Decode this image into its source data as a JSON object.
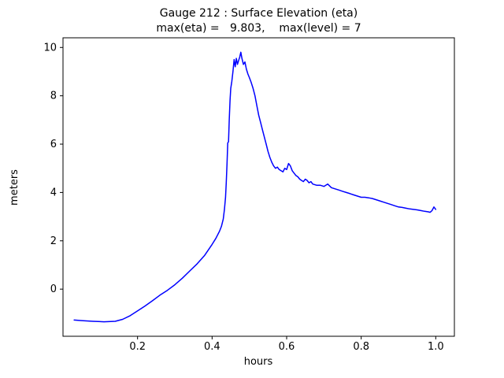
{
  "chart_data": {
    "type": "line",
    "title": "Gauge 212 : Surface Elevation (eta)",
    "subtitle": "max(eta) =   9.803,    max(level) = 7",
    "xlabel": "hours",
    "ylabel": "meters",
    "xlim": [
      0.0,
      1.05
    ],
    "ylim": [
      -1.95,
      10.4
    ],
    "grid": false,
    "legend": "none",
    "line_color": "#0000ff",
    "axis_color": "#000000",
    "max_eta": 9.803,
    "max_level": 7,
    "xticks": [
      {
        "v": 0.2,
        "label": "0.2"
      },
      {
        "v": 0.4,
        "label": "0.4"
      },
      {
        "v": 0.6,
        "label": "0.6"
      },
      {
        "v": 0.8,
        "label": "0.8"
      },
      {
        "v": 1.0,
        "label": "1.0"
      }
    ],
    "yticks": [
      {
        "v": 0,
        "label": "0"
      },
      {
        "v": 2,
        "label": "2"
      },
      {
        "v": 4,
        "label": "4"
      },
      {
        "v": 6,
        "label": "6"
      },
      {
        "v": 8,
        "label": "8"
      },
      {
        "v": 10,
        "label": "10"
      }
    ],
    "series": [
      {
        "name": "eta",
        "x": [
          0.03,
          0.05,
          0.08,
          0.11,
          0.14,
          0.16,
          0.18,
          0.2,
          0.22,
          0.24,
          0.26,
          0.28,
          0.3,
          0.32,
          0.34,
          0.36,
          0.38,
          0.4,
          0.41,
          0.42,
          0.425,
          0.43,
          0.433,
          0.436,
          0.438,
          0.44,
          0.442,
          0.444,
          0.446,
          0.448,
          0.45,
          0.453,
          0.456,
          0.459,
          0.462,
          0.465,
          0.468,
          0.471,
          0.474,
          0.477,
          0.48,
          0.484,
          0.488,
          0.492,
          0.496,
          0.5,
          0.505,
          0.51,
          0.515,
          0.52,
          0.525,
          0.53,
          0.535,
          0.54,
          0.545,
          0.55,
          0.555,
          0.56,
          0.565,
          0.57,
          0.575,
          0.58,
          0.585,
          0.59,
          0.595,
          0.6,
          0.605,
          0.61,
          0.615,
          0.62,
          0.625,
          0.63,
          0.635,
          0.64,
          0.645,
          0.65,
          0.655,
          0.66,
          0.665,
          0.67,
          0.68,
          0.69,
          0.7,
          0.71,
          0.72,
          0.73,
          0.74,
          0.75,
          0.76,
          0.77,
          0.78,
          0.79,
          0.8,
          0.81,
          0.82,
          0.83,
          0.84,
          0.85,
          0.86,
          0.87,
          0.88,
          0.89,
          0.9,
          0.91,
          0.92,
          0.93,
          0.94,
          0.95,
          0.96,
          0.97,
          0.98,
          0.985,
          0.99,
          0.995,
          1.0
        ],
        "y": [
          -1.28,
          -1.3,
          -1.33,
          -1.35,
          -1.33,
          -1.25,
          -1.1,
          -0.9,
          -0.7,
          -0.48,
          -0.25,
          -0.05,
          0.18,
          0.45,
          0.75,
          1.05,
          1.4,
          1.85,
          2.1,
          2.4,
          2.6,
          2.9,
          3.3,
          3.8,
          4.4,
          5.2,
          6.05,
          6.1,
          7.0,
          7.8,
          8.3,
          8.6,
          9.0,
          9.5,
          9.2,
          9.55,
          9.3,
          9.45,
          9.6,
          9.803,
          9.55,
          9.3,
          9.4,
          9.1,
          8.9,
          8.75,
          8.55,
          8.3,
          8.0,
          7.6,
          7.2,
          6.9,
          6.6,
          6.3,
          6.0,
          5.7,
          5.45,
          5.25,
          5.1,
          5.0,
          5.05,
          4.95,
          4.9,
          4.85,
          5.0,
          4.95,
          5.2,
          5.1,
          4.9,
          4.8,
          4.7,
          4.65,
          4.55,
          4.5,
          4.45,
          4.55,
          4.5,
          4.4,
          4.45,
          4.35,
          4.3,
          4.3,
          4.25,
          4.35,
          4.2,
          4.15,
          4.1,
          4.05,
          4.0,
          3.95,
          3.9,
          3.85,
          3.8,
          3.8,
          3.78,
          3.75,
          3.7,
          3.65,
          3.6,
          3.55,
          3.5,
          3.45,
          3.4,
          3.38,
          3.35,
          3.32,
          3.3,
          3.28,
          3.25,
          3.22,
          3.2,
          3.18,
          3.25,
          3.4,
          3.3
        ]
      }
    ]
  }
}
